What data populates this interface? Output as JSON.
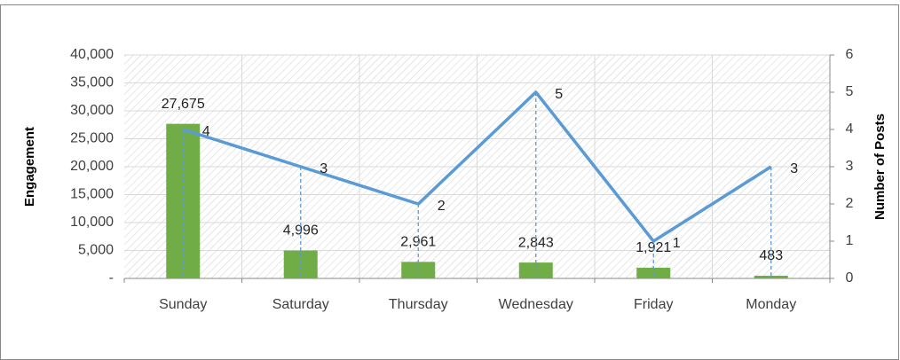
{
  "chart_data": {
    "type": "combo",
    "categories": [
      "Sunday",
      "Saturday",
      "Thursday",
      "Wednesday",
      "Friday",
      "Monday"
    ],
    "y_label": "Engagement",
    "y2_label": "Number of Posts",
    "series": [
      {
        "type": "bar",
        "color": "#70ad47",
        "values": [
          27675,
          4996,
          2961,
          2843,
          1921,
          483
        ],
        "value_labels": [
          "27,675",
          "4,996",
          "2,961",
          "2,843",
          "1,921",
          "483"
        ]
      },
      {
        "type": "line",
        "axis": "y2",
        "color": "#5b9bd5",
        "values": [
          4,
          3,
          2,
          5,
          1,
          3
        ]
      }
    ],
    "ylim": [
      0,
      40000
    ],
    "yticks": [
      {
        "value": 0,
        "label": "-"
      },
      {
        "value": 5000,
        "label": "5,000"
      },
      {
        "value": 10000,
        "label": "10,000"
      },
      {
        "value": 15000,
        "label": "15,000"
      },
      {
        "value": 20000,
        "label": "20,000"
      },
      {
        "value": 25000,
        "label": "25,000"
      },
      {
        "value": 30000,
        "label": "30,000"
      },
      {
        "value": 35000,
        "label": "35,000"
      },
      {
        "value": 40000,
        "label": "40,000"
      }
    ],
    "y2lim": [
      0,
      6
    ],
    "y2ticks": [
      0,
      1,
      2,
      3,
      4,
      5,
      6
    ],
    "grid": true
  }
}
